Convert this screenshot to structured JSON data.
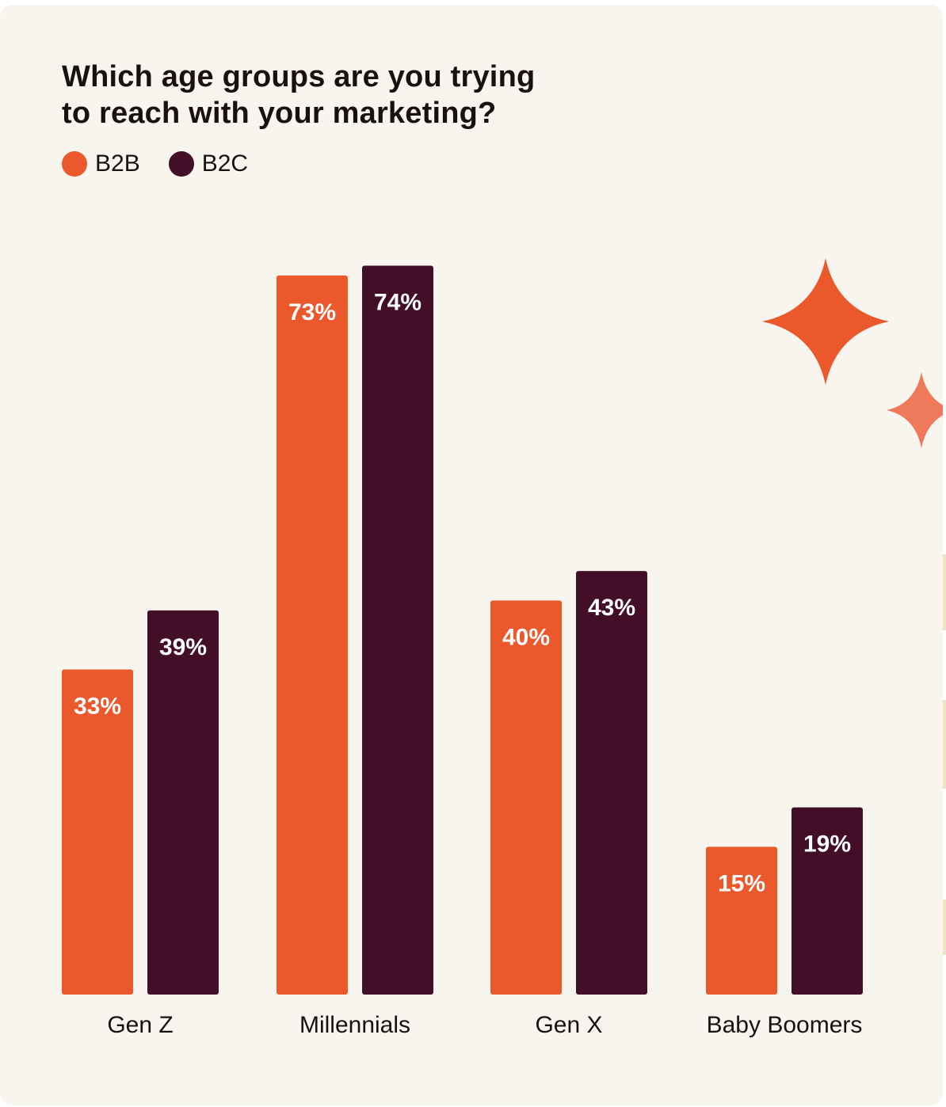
{
  "colors": {
    "background": "#f8f4ee",
    "b2b": "#ea582b",
    "b2c": "#420e28",
    "sparkle_large": "#ea582b",
    "sparkle_small": "#ee7a5b",
    "text": "#1a1012"
  },
  "chart_data": {
    "type": "bar",
    "title": "Which age groups are you trying to reach with your marketing?",
    "title_lines": [
      "Which age groups are you trying",
      "to reach with your marketing?"
    ],
    "categories": [
      "Gen Z",
      "Millennials",
      "Gen X",
      "Baby Boomers"
    ],
    "series": [
      {
        "name": "B2B",
        "values": [
          33,
          73,
          40,
          15
        ],
        "labels": [
          "33%",
          "73%",
          "40%",
          "15%"
        ],
        "color": "#ea582b"
      },
      {
        "name": "B2C",
        "values": [
          39,
          74,
          43,
          19
        ],
        "labels": [
          "39%",
          "74%",
          "43%",
          "19%"
        ],
        "color": "#420e28"
      }
    ],
    "ylim": [
      0,
      80
    ],
    "grid": false,
    "legend": "top-left",
    "decorations": [
      "sparkle-icon",
      "sparkle-icon"
    ]
  }
}
